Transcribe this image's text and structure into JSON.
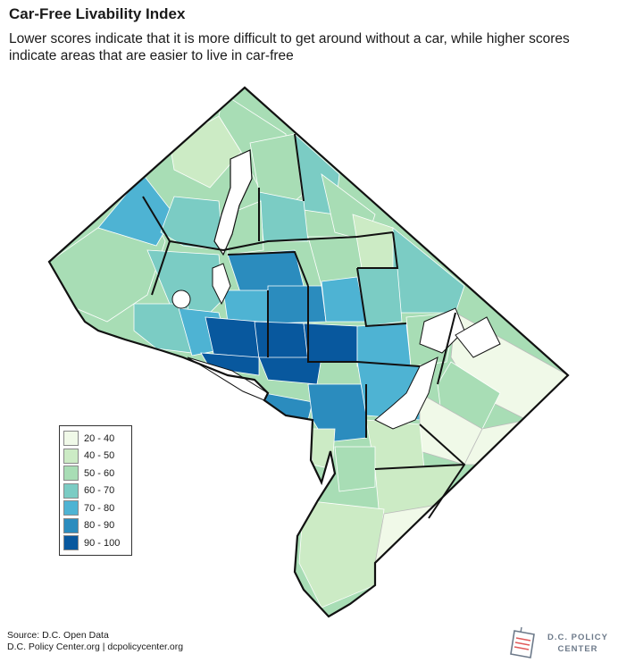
{
  "title": "Car-Free Livability Index",
  "subtitle": "Lower scores indicate that it is more difficult to get around without a car, while higher scores indicate areas that are easier to live in car-free",
  "legend": {
    "items": [
      {
        "label": "20 - 40",
        "color": "#f0f9e8"
      },
      {
        "label": "40 - 50",
        "color": "#ccebc5"
      },
      {
        "label": "50 - 60",
        "color": "#a8ddb5"
      },
      {
        "label": "60 - 70",
        "color": "#7bccc4"
      },
      {
        "label": "70 - 80",
        "color": "#4eb3d3"
      },
      {
        "label": "80 - 90",
        "color": "#2b8cbe"
      },
      {
        "label": "90 - 100",
        "color": "#08589e"
      }
    ]
  },
  "source": {
    "line1": "Source: D.C. Open Data",
    "line2": "D.C. Policy Center.org | dcpolicycenter.org"
  },
  "logo": {
    "line1": "D.C. POLICY",
    "line2": "CENTER"
  }
}
